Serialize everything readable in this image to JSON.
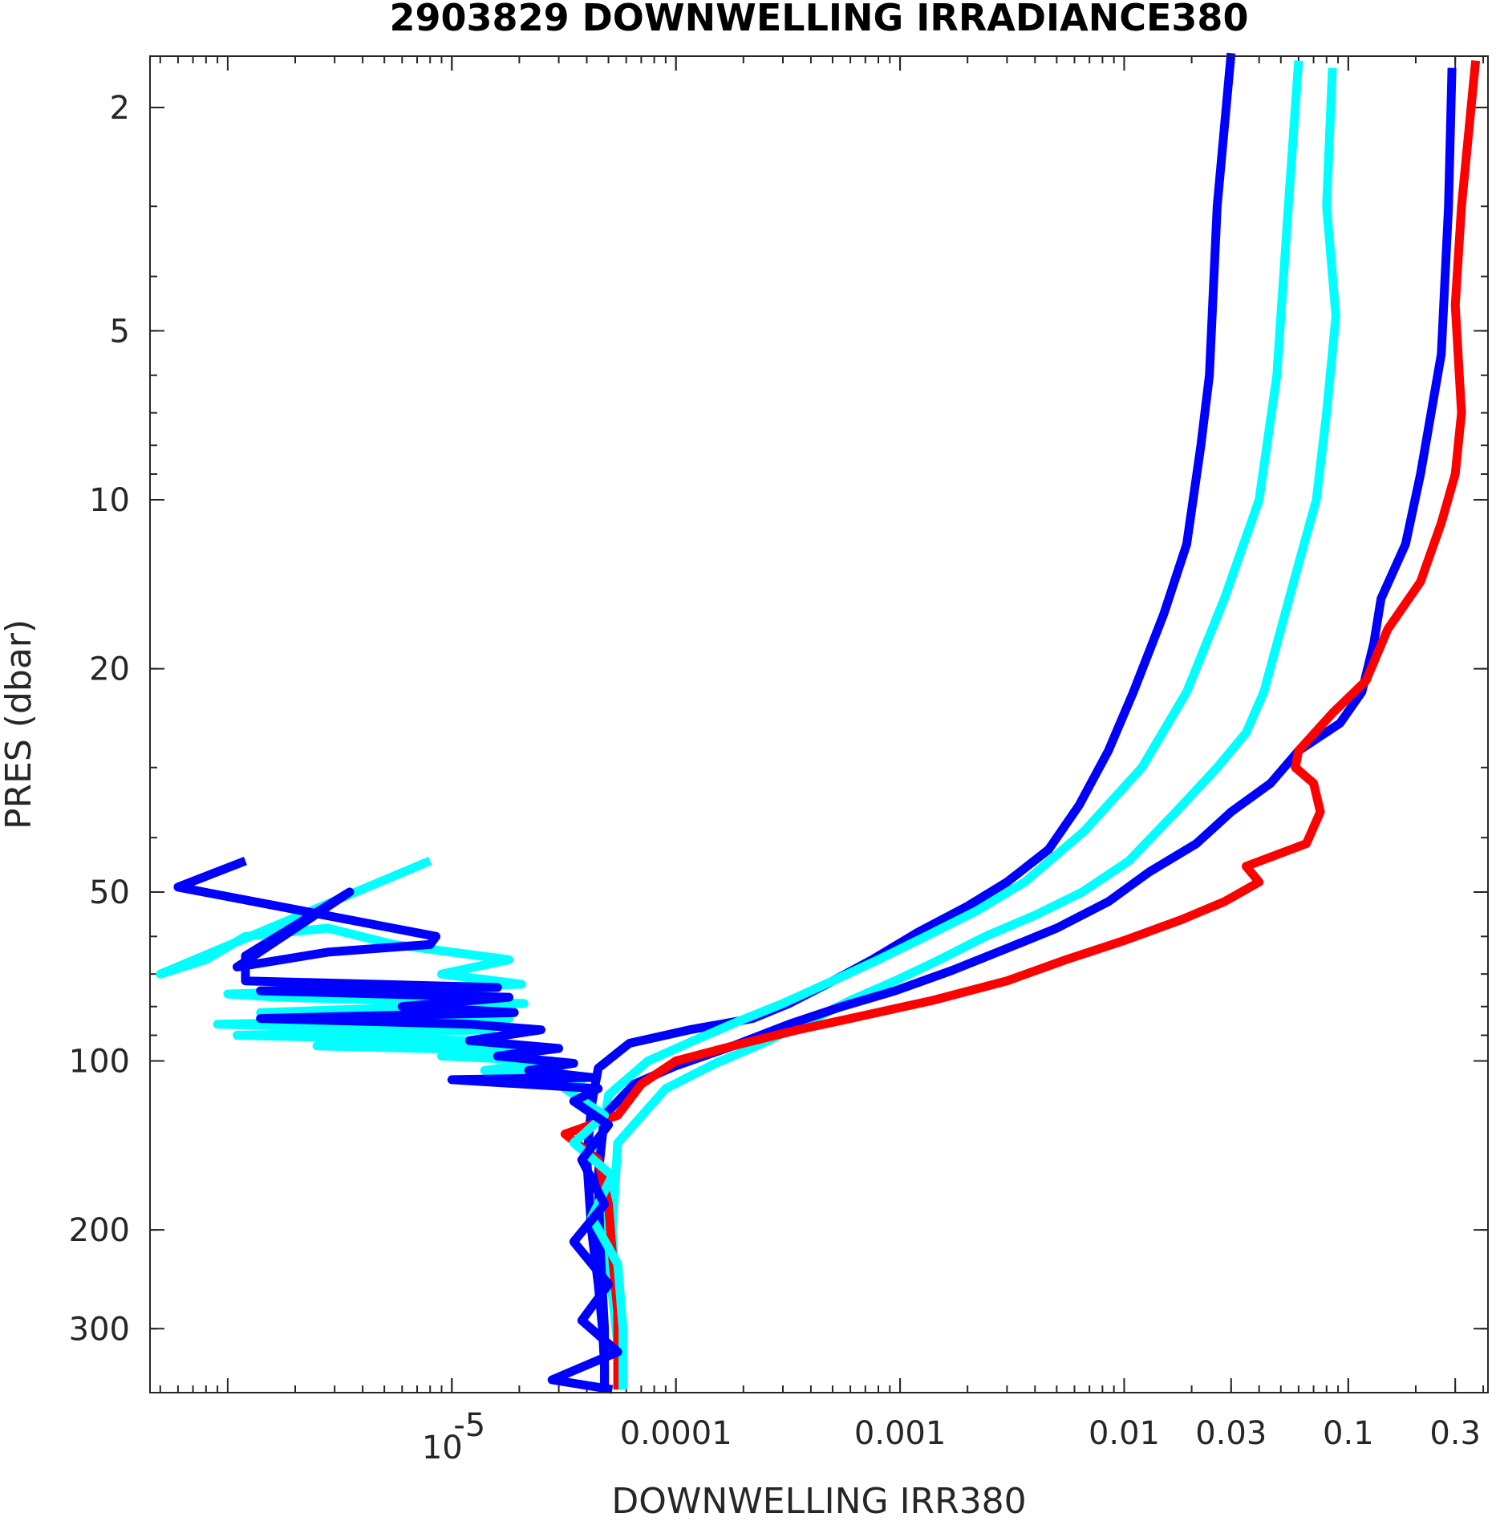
{
  "chart_data": {
    "type": "line",
    "title": "2903829  DOWNWELLING IRRADIANCE380",
    "xlabel": "DOWNWELLING IRR380",
    "ylabel": "PRES (dbar)",
    "x_scale": "log",
    "y_scale": "log",
    "y_reversed": true,
    "xlim": [
      4.5e-07,
      0.42
    ],
    "ylim": [
      1.62,
      390
    ],
    "grid": false,
    "x_ticks": [
      {
        "value": 1e-05,
        "label": "10",
        "exp": "-5"
      },
      {
        "value": 0.0001,
        "label": "0.0001"
      },
      {
        "value": 0.001,
        "label": "0.001"
      },
      {
        "value": 0.01,
        "label": "0.01"
      },
      {
        "value": 0.03,
        "label": "0.03"
      },
      {
        "value": 0.1,
        "label": "0.1"
      },
      {
        "value": 0.3,
        "label": "0.3"
      }
    ],
    "y_ticks": [
      {
        "value": 2,
        "label": "2"
      },
      {
        "value": 5,
        "label": "5"
      },
      {
        "value": 10,
        "label": "10"
      },
      {
        "value": 20,
        "label": "20"
      },
      {
        "value": 50,
        "label": "50"
      },
      {
        "value": 100,
        "label": "100"
      },
      {
        "value": 200,
        "label": "200"
      },
      {
        "value": 300,
        "label": "300"
      }
    ],
    "series": [
      {
        "color": "#0000ff",
        "points": [
          [
            0.03,
            1.6
          ],
          [
            0.026,
            3
          ],
          [
            0.024,
            6
          ],
          [
            0.022,
            8
          ],
          [
            0.019,
            12
          ],
          [
            0.015,
            16
          ],
          [
            0.011,
            22
          ],
          [
            0.0085,
            28
          ],
          [
            0.0063,
            35
          ],
          [
            0.0046,
            42
          ],
          [
            0.003,
            48
          ],
          [
            0.002,
            53
          ],
          [
            0.0012,
            59
          ],
          [
            0.00075,
            66
          ],
          [
            0.00047,
            73
          ],
          [
            0.00032,
            79
          ],
          [
            0.00022,
            84
          ],
          [
            0.000115,
            88
          ],
          [
            6.2e-05,
            93
          ],
          [
            4.5e-05,
            103
          ],
          [
            4.2e-05,
            120
          ],
          [
            4e-05,
            150
          ],
          [
            4.2e-05,
            200
          ],
          [
            4.5e-05,
            250
          ],
          [
            4.7e-05,
            300
          ],
          [
            4.8e-05,
            350
          ],
          [
            4.8e-05,
            385
          ]
        ]
      },
      {
        "color": "#00ffff",
        "points": [
          [
            0.06,
            1.65
          ],
          [
            0.054,
            3
          ],
          [
            0.048,
            6
          ],
          [
            0.04,
            10
          ],
          [
            0.028,
            15
          ],
          [
            0.019,
            22
          ],
          [
            0.012,
            30
          ],
          [
            0.0066,
            39
          ],
          [
            0.0036,
            48
          ],
          [
            0.0022,
            54
          ],
          [
            0.0013,
            60
          ],
          [
            0.0008,
            66
          ],
          [
            0.0005,
            72
          ],
          [
            0.0003,
            79
          ],
          [
            0.00019,
            85
          ],
          [
            0.00012,
            92
          ],
          [
            7.5e-05,
            100
          ],
          [
            5e-05,
            115
          ],
          [
            4.5e-05,
            150
          ],
          [
            4.8e-05,
            200
          ],
          [
            5.2e-05,
            260
          ],
          [
            5.5e-05,
            320
          ],
          [
            5.8e-05,
            385
          ]
        ]
      },
      {
        "color": "#00ffff",
        "points": [
          [
            0.085,
            1.7
          ],
          [
            0.08,
            3
          ],
          [
            0.088,
            4.7
          ],
          [
            0.08,
            7
          ],
          [
            0.072,
            10
          ],
          [
            0.06,
            13
          ],
          [
            0.05,
            17
          ],
          [
            0.042,
            22
          ],
          [
            0.035,
            26
          ],
          [
            0.026,
            30
          ],
          [
            0.017,
            36
          ],
          [
            0.0105,
            44
          ],
          [
            0.0065,
            50
          ],
          [
            0.004,
            55
          ],
          [
            0.0024,
            60
          ],
          [
            0.0015,
            66
          ],
          [
            0.00095,
            72
          ],
          [
            0.0006,
            78
          ],
          [
            0.00037,
            86
          ],
          [
            0.00023,
            94
          ],
          [
            0.00015,
            101
          ],
          [
            9e-05,
            112
          ],
          [
            5.5e-05,
            140
          ],
          [
            5.2e-05,
            200
          ],
          [
            5.5e-05,
            300
          ],
          [
            5.5e-05,
            385
          ]
        ]
      },
      {
        "color": "#0000ff",
        "points": [
          [
            0.29,
            1.7
          ],
          [
            0.28,
            3
          ],
          [
            0.26,
            5.5
          ],
          [
            0.21,
            9
          ],
          [
            0.18,
            12
          ],
          [
            0.14,
            15
          ],
          [
            0.13,
            18
          ],
          [
            0.115,
            22
          ],
          [
            0.092,
            25
          ],
          [
            0.06,
            28
          ],
          [
            0.045,
            32
          ],
          [
            0.03,
            36
          ],
          [
            0.021,
            41
          ],
          [
            0.013,
            46
          ],
          [
            0.0085,
            52
          ],
          [
            0.005,
            58
          ],
          [
            0.003,
            63
          ],
          [
            0.0017,
            69
          ],
          [
            0.00095,
            75
          ],
          [
            0.00055,
            80
          ],
          [
            0.00032,
            86
          ],
          [
            0.00018,
            94
          ],
          [
            0.0001,
            102
          ],
          [
            6.5e-05,
            110
          ],
          [
            4.8e-05,
            125
          ],
          [
            4.5e-05,
            160
          ],
          [
            4.6e-05,
            220
          ],
          [
            4.8e-05,
            300
          ],
          [
            4.8e-05,
            385
          ]
        ]
      },
      {
        "color": "#ff0000",
        "points": [
          [
            0.37,
            1.65
          ],
          [
            0.32,
            3
          ],
          [
            0.3,
            4.5
          ],
          [
            0.32,
            7
          ],
          [
            0.3,
            9
          ],
          [
            0.26,
            11
          ],
          [
            0.21,
            14
          ],
          [
            0.15,
            17
          ],
          [
            0.12,
            21
          ],
          [
            0.085,
            24
          ],
          [
            0.06,
            28
          ],
          [
            0.058,
            30
          ],
          [
            0.07,
            32
          ],
          [
            0.075,
            36
          ],
          [
            0.065,
            41
          ],
          [
            0.035,
            45
          ],
          [
            0.04,
            48
          ],
          [
            0.028,
            52
          ],
          [
            0.018,
            56
          ],
          [
            0.01,
            61
          ],
          [
            0.0055,
            66
          ],
          [
            0.003,
            72
          ],
          [
            0.0014,
            78
          ],
          [
            0.0006,
            84
          ],
          [
            0.00035,
            88
          ],
          [
            0.00018,
            94
          ],
          [
            0.0001,
            100
          ],
          [
            7e-05,
            110
          ],
          [
            5.5e-05,
            125
          ],
          [
            3.2e-05,
            135
          ],
          [
            4.5e-05,
            150
          ],
          [
            5e-05,
            180
          ],
          [
            5.2e-05,
            220
          ],
          [
            5.5e-05,
            280
          ],
          [
            5.5e-05,
            330
          ],
          [
            5.5e-05,
            385
          ]
        ]
      },
      {
        "color": "#00ffff",
        "points": [
          [
            8e-06,
            44
          ],
          [
            5e-07,
            70
          ],
          [
            8e-07,
            66
          ],
          [
            1.2e-06,
            60
          ],
          [
            2.8e-06,
            58
          ],
          [
            5.5e-06,
            62
          ],
          [
            1.8e-05,
            66
          ],
          [
            9e-06,
            70
          ],
          [
            2.05e-05,
            73
          ],
          [
            1e-06,
            76
          ],
          [
            1.7e-06,
            77
          ],
          [
            2.1e-05,
            79
          ],
          [
            1.4e-06,
            82
          ],
          [
            1.8e-05,
            84
          ],
          [
            9e-07,
            86
          ],
          [
            1.5e-05,
            88
          ],
          [
            1.1e-06,
            90
          ],
          [
            1.2e-05,
            92
          ],
          [
            2.5e-06,
            94
          ],
          [
            2.2e-05,
            96
          ],
          [
            9e-06,
            98
          ],
          [
            2.8e-05,
            100
          ],
          [
            1.4e-05,
            104
          ],
          [
            3.8e-05,
            108
          ],
          [
            3.2e-05,
            112
          ],
          [
            4.8e-05,
            125
          ],
          [
            3.5e-05,
            140
          ],
          [
            5.2e-05,
            160
          ],
          [
            4.2e-05,
            190
          ],
          [
            5.5e-05,
            230
          ],
          [
            5.8e-05,
            300
          ],
          [
            5.8e-05,
            385
          ]
        ]
      },
      {
        "color": "#0000ff",
        "points": [
          [
            1.2e-06,
            44
          ],
          [
            6e-07,
            49
          ],
          [
            8.5e-06,
            60
          ],
          [
            8e-06,
            62
          ],
          [
            2.8e-06,
            64
          ],
          [
            1.1e-06,
            68
          ],
          [
            3.5e-06,
            50
          ],
          [
            1.2e-06,
            65
          ],
          [
            1.2e-06,
            72
          ],
          [
            1.6e-05,
            74
          ],
          [
            1.4e-06,
            75
          ],
          [
            1.8e-05,
            77
          ],
          [
            6e-06,
            80
          ],
          [
            1.9e-05,
            82
          ],
          [
            1.4e-06,
            84
          ],
          [
            1.2e-05,
            86
          ],
          [
            2.5e-05,
            88
          ],
          [
            1.2e-05,
            92
          ],
          [
            3e-05,
            95
          ],
          [
            1.6e-05,
            98
          ],
          [
            3.5e-05,
            101
          ],
          [
            2.2e-05,
            104
          ],
          [
            4.2e-05,
            107
          ],
          [
            1e-05,
            108
          ],
          [
            4.5e-05,
            112
          ],
          [
            3.5e-05,
            118
          ],
          [
            5e-05,
            130
          ],
          [
            3.8e-05,
            150
          ],
          [
            4.8e-05,
            180
          ],
          [
            3.5e-05,
            210
          ],
          [
            5e-05,
            250
          ],
          [
            3.8e-05,
            290
          ],
          [
            5.5e-05,
            330
          ],
          [
            2.8e-05,
            370
          ],
          [
            5.2e-05,
            385
          ]
        ]
      }
    ]
  }
}
